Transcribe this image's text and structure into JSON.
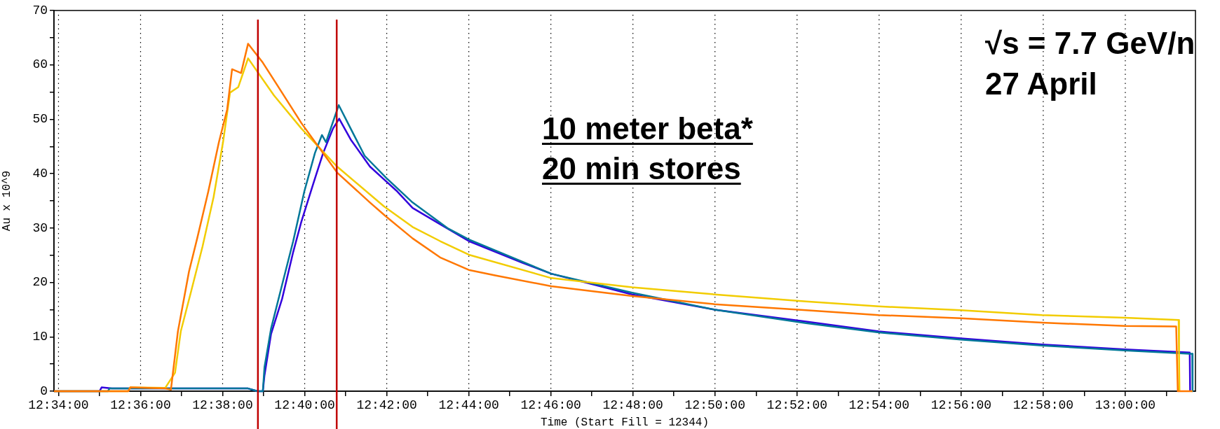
{
  "chart_data": {
    "type": "line",
    "xlabel": "Time (Start Fill = 12344)",
    "ylabel": "Au x 10^9",
    "annotations": [
      "10 meter beta*",
      "20 min stores",
      "√s = 7.7 GeV/n",
      "27 April"
    ],
    "xlim": [
      12.56483,
      13.0285
    ],
    "ylim": [
      0,
      70
    ],
    "xticks": [
      {
        "value": 12.56667,
        "label": "12:34:00"
      },
      {
        "value": 12.58333,
        "label": null
      },
      {
        "value": 12.6,
        "label": "12:36:00"
      },
      {
        "value": 12.61667,
        "label": null
      },
      {
        "value": 12.63333,
        "label": "12:38:00"
      },
      {
        "value": 12.65,
        "label": null
      },
      {
        "value": 12.66667,
        "label": "12:40:00"
      },
      {
        "value": 12.68333,
        "label": null
      },
      {
        "value": 12.7,
        "label": "12:42:00"
      },
      {
        "value": 12.71667,
        "label": null
      },
      {
        "value": 12.73333,
        "label": "12:44:00"
      },
      {
        "value": 12.75,
        "label": null
      },
      {
        "value": 12.76667,
        "label": "12:46:00"
      },
      {
        "value": 12.78333,
        "label": null
      },
      {
        "value": 12.8,
        "label": "12:48:00"
      },
      {
        "value": 12.81667,
        "label": null
      },
      {
        "value": 12.83333,
        "label": "12:50:00"
      },
      {
        "value": 12.85,
        "label": null
      },
      {
        "value": 12.86667,
        "label": "12:52:00"
      },
      {
        "value": 12.88333,
        "label": null
      },
      {
        "value": 12.9,
        "label": "12:54:00"
      },
      {
        "value": 12.91667,
        "label": null
      },
      {
        "value": 12.93333,
        "label": "12:56:00"
      },
      {
        "value": 12.95,
        "label": null
      },
      {
        "value": 12.96667,
        "label": "12:58:00"
      },
      {
        "value": 12.98333,
        "label": null
      },
      {
        "value": 13,
        "label": "13:00:00"
      },
      {
        "value": 13.01667,
        "label": null
      }
    ],
    "yticks": [
      0,
      {
        "value": 5,
        "label": null
      },
      10,
      {
        "value": 15,
        "label": null
      },
      20,
      {
        "value": 25,
        "label": null
      },
      30,
      {
        "value": 35,
        "label": null
      },
      40,
      {
        "value": 45,
        "label": null
      },
      50,
      {
        "value": 55,
        "label": null
      },
      60,
      {
        "value": 65,
        "label": null
      },
      70
    ],
    "grid": "x",
    "legend": false,
    "marker": "none",
    "line_style": "solid",
    "ref_lines": [
      {
        "axis": "x",
        "value": 12.64767,
        "color": "#c00000"
      },
      {
        "axis": "x",
        "value": 12.67967,
        "color": "#c00000"
      }
    ],
    "series": [
      {
        "color": "#ff7700",
        "x": [
          12.56483,
          12.595,
          12.59583,
          12.61,
          12.61233,
          12.61517,
          12.61967,
          12.623,
          12.6275,
          12.63183,
          12.63517,
          12.63717,
          12.64083,
          12.64367,
          12.64967,
          12.65533,
          12.66533,
          12.67983,
          12.69317,
          12.6995,
          12.7105,
          12.72167,
          12.73333,
          12.744,
          12.76683,
          12.79967,
          12.83317,
          12.87033,
          12.89983,
          12.93317,
          12.96617,
          12.99983,
          13.02067,
          13.02133,
          13.02733
        ],
        "values": [
          0,
          0,
          0.7,
          0.5,
          0.3,
          11,
          22,
          28.1,
          36.7,
          45.8,
          51.8,
          59.2,
          58.5,
          63.9,
          60.4,
          56.4,
          49.3,
          40.2,
          34.7,
          32.2,
          28.1,
          24.6,
          22.3,
          21.3,
          19.3,
          17.5,
          16.0,
          14.9,
          14.0,
          13.4,
          12.6,
          12.0,
          11.9,
          0,
          0
        ]
      },
      {
        "color": "#f2cc00",
        "x": [
          12.56483,
          12.595,
          12.59583,
          12.61,
          12.614,
          12.61633,
          12.62067,
          12.62517,
          12.62967,
          12.6335,
          12.63633,
          12.63967,
          12.64367,
          12.65417,
          12.66533,
          12.67983,
          12.69883,
          12.7105,
          12.72167,
          12.73333,
          12.76683,
          12.79967,
          12.83317,
          12.87033,
          12.89983,
          12.93317,
          12.96617,
          12.99983,
          13.02167,
          13.02183,
          13.022
        ],
        "values": [
          0,
          0,
          0.7,
          0.6,
          3.4,
          11,
          18.6,
          26.6,
          35.7,
          45.8,
          54.9,
          55.9,
          61.2,
          54.4,
          48.3,
          41.3,
          34.0,
          30.2,
          27.6,
          25.1,
          20.8,
          19.1,
          17.8,
          16.5,
          15.6,
          14.9,
          14.0,
          13.5,
          13.1,
          6.5,
          0
        ]
      },
      {
        "color": "#007799",
        "x": [
          12.56483,
          12.58667,
          12.5875,
          12.64367,
          12.6475,
          12.64967,
          12.65033,
          12.653,
          12.6575,
          12.662,
          12.6665,
          12.67083,
          12.67367,
          12.67533,
          12.6805,
          12.68533,
          12.691,
          12.69983,
          12.7105,
          12.725,
          12.73333,
          12.76683,
          12.79967,
          12.83317,
          12.87033,
          12.89983,
          12.93317,
          12.96617,
          12.99983,
          13.02617,
          13.0272,
          13.02733
        ],
        "values": [
          0,
          0,
          0.5,
          0.5,
          0,
          0,
          4.4,
          11.5,
          19.6,
          27.6,
          36.7,
          43.8,
          47.1,
          45.8,
          52.6,
          48.3,
          43.3,
          39.2,
          34.7,
          29.9,
          27.9,
          21.6,
          18.1,
          15.0,
          12.5,
          10.8,
          9.5,
          8.4,
          7.5,
          6.9,
          6.9,
          0
        ]
      },
      {
        "color": "#3300dd",
        "x": [
          12.56483,
          12.58333,
          12.58417,
          12.58833,
          12.64367,
          12.6475,
          12.64967,
          12.65033,
          12.653,
          12.6575,
          12.662,
          12.66533,
          12.66983,
          12.67417,
          12.67817,
          12.68067,
          12.68533,
          12.69317,
          12.70433,
          12.7105,
          12.72167,
          12.73333,
          12.75517,
          12.76683,
          12.79967,
          12.83317,
          12.87033,
          12.89983,
          12.93317,
          12.96617,
          12.99983,
          13.02617,
          13.02633
        ],
        "values": [
          0,
          0,
          0.7,
          0.5,
          0.5,
          0,
          0,
          2.9,
          10.5,
          17,
          25.6,
          31.2,
          37.7,
          43.8,
          48.3,
          50.1,
          46.3,
          41.3,
          36.7,
          33.7,
          30.7,
          27.6,
          23.6,
          21.6,
          17.8,
          15.0,
          12.8,
          11.0,
          9.7,
          8.6,
          7.7,
          7.1,
          0
        ]
      }
    ]
  }
}
